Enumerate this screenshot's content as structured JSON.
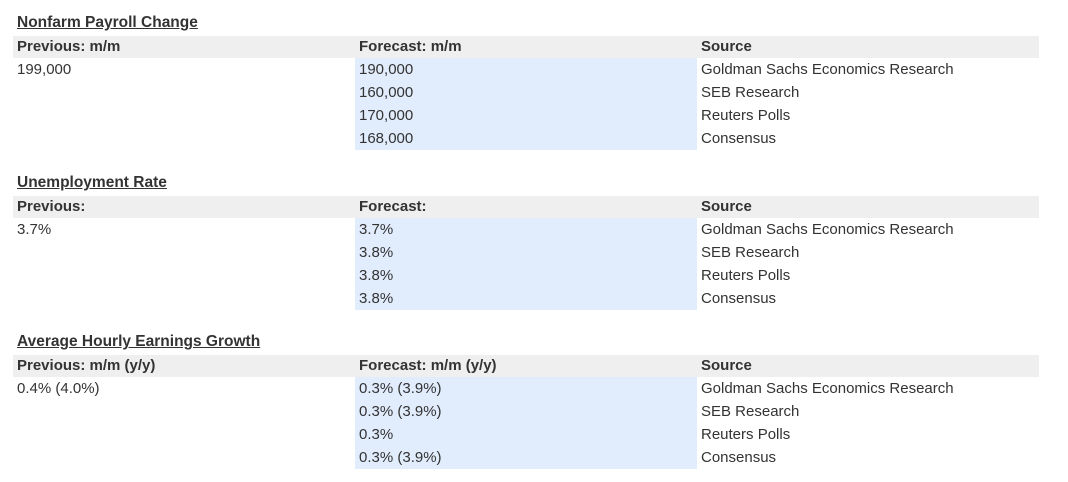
{
  "sections": [
    {
      "title": "Nonfarm Payroll Change",
      "headers": {
        "previous": "Previous: m/m",
        "forecast": "Forecast: m/m",
        "source": "Source"
      },
      "previous_value": "199,000",
      "rows": [
        {
          "forecast": "190,000",
          "source": "Goldman Sachs Economics Research"
        },
        {
          "forecast": "160,000",
          "source": "SEB Research"
        },
        {
          "forecast": "170,000",
          "source": "Reuters Polls"
        },
        {
          "forecast": "168,000",
          "source": "Consensus"
        }
      ]
    },
    {
      "title": "Unemployment Rate",
      "headers": {
        "previous": "Previous:",
        "forecast": "Forecast:",
        "source": "Source"
      },
      "previous_value": "3.7%",
      "rows": [
        {
          "forecast": "3.7%",
          "source": "Goldman Sachs Economics Research"
        },
        {
          "forecast": "3.8%",
          "source": "SEB Research"
        },
        {
          "forecast": "3.8%",
          "source": "Reuters Polls"
        },
        {
          "forecast": "3.8%",
          "source": "Consensus"
        }
      ]
    },
    {
      "title": "Average Hourly Earnings Growth",
      "headers": {
        "previous": "Previous: m/m (y/y)",
        "forecast": "Forecast: m/m (y/y)",
        "source": "Source"
      },
      "previous_value": "0.4% (4.0%)",
      "rows": [
        {
          "forecast": "0.3% (3.9%)",
          "source": "Goldman Sachs Economics Research"
        },
        {
          "forecast": "0.3% (3.9%)",
          "source": "SEB Research"
        },
        {
          "forecast": "0.3%",
          "source": "Reuters Polls"
        },
        {
          "forecast": "0.3% (3.9%)",
          "source": "Consensus"
        }
      ]
    }
  ],
  "colors": {
    "header_background": "#efefef",
    "forecast_background": "#e1ecfc",
    "text": "#333333"
  }
}
